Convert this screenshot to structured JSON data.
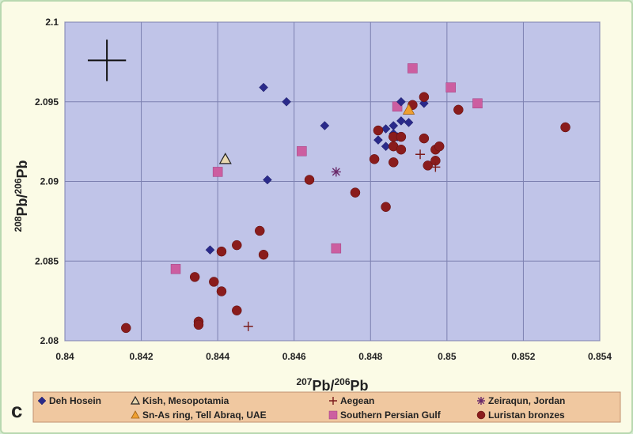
{
  "chart_data": {
    "type": "scatter",
    "panel_label": "c",
    "xlabel": {
      "pre_sup": "207",
      "main": "Pb/",
      "post_sup": "206",
      "end": "Pb"
    },
    "ylabel": {
      "pre_sup": "208",
      "main": "Pb/",
      "post_sup": "206",
      "end": "Pb"
    },
    "xlim": [
      0.84,
      0.854
    ],
    "ylim": [
      2.08,
      2.1
    ],
    "x_ticks": [
      0.84,
      0.842,
      0.844,
      0.846,
      0.848,
      0.85,
      0.852,
      0.854
    ],
    "x_tick_labels": [
      "0.84",
      "0.842",
      "0.844",
      "0.846",
      "0.848",
      "0.85",
      "0.852",
      "0.854"
    ],
    "y_ticks": [
      2.08,
      2.085,
      2.09,
      2.095,
      2.1
    ],
    "y_tick_labels": [
      "2.08",
      "2.085",
      "2.09",
      "2.095",
      "2.1"
    ],
    "grid": true,
    "legend_position": "bottom",
    "error_cross": {
      "x": 0.8411,
      "y": 2.0976,
      "x_err": 0.00025,
      "y_err": 0.0013
    },
    "series": [
      {
        "name": "Deh Hosein",
        "marker": "diamond",
        "color": "#2a2a8a",
        "points": [
          [
            0.8452,
            2.0959
          ],
          [
            0.8458,
            2.095
          ],
          [
            0.8468,
            2.0935
          ],
          [
            0.8453,
            2.0901
          ],
          [
            0.8438,
            2.0857
          ],
          [
            0.8488,
            2.095
          ],
          [
            0.8494,
            2.0949
          ],
          [
            0.8482,
            2.0926
          ],
          [
            0.8484,
            2.0933
          ],
          [
            0.8486,
            2.0935
          ],
          [
            0.8488,
            2.0938
          ],
          [
            0.849,
            2.0937
          ],
          [
            0.8484,
            2.0922
          ],
          [
            0.8486,
            2.093
          ],
          [
            0.8487,
            2.0928
          ]
        ]
      },
      {
        "name": "Kish, Mesopotamia",
        "marker": "triangle-open",
        "color": "#e8d8b0",
        "points": [
          [
            0.8442,
            2.0914
          ]
        ]
      },
      {
        "name": "Sn-As ring, Tell Abraq, UAE",
        "marker": "triangle",
        "color": "#f0a030",
        "points": [
          [
            0.849,
            2.0945
          ]
        ]
      },
      {
        "name": "Aegean",
        "marker": "plus",
        "color": "#7a1a1a",
        "points": [
          [
            0.8448,
            2.0809
          ],
          [
            0.8493,
            2.0917
          ],
          [
            0.8497,
            2.0909
          ]
        ]
      },
      {
        "name": "Southern Persian Gulf",
        "marker": "square",
        "color": "#cc5ea0",
        "points": [
          [
            0.8491,
            2.0971
          ],
          [
            0.8501,
            2.0959
          ],
          [
            0.8508,
            2.0949
          ],
          [
            0.8487,
            2.0947
          ],
          [
            0.8462,
            2.0919
          ],
          [
            0.844,
            2.0906
          ],
          [
            0.8471,
            2.0858
          ],
          [
            0.8429,
            2.0845
          ]
        ]
      },
      {
        "name": "Zeiraqun, Jordan",
        "marker": "asterisk",
        "color": "#6a2a6a",
        "points": [
          [
            0.8471,
            2.0906
          ]
        ]
      },
      {
        "name": "Luristan bronzes",
        "marker": "circle",
        "color": "#8a1c1c",
        "points": [
          [
            0.8494,
            2.0953
          ],
          [
            0.8491,
            2.0948
          ],
          [
            0.8503,
            2.0945
          ],
          [
            0.8482,
            2.0932
          ],
          [
            0.8531,
            2.0934
          ],
          [
            0.8486,
            2.0928
          ],
          [
            0.8488,
            2.0928
          ],
          [
            0.8494,
            2.0927
          ],
          [
            0.8486,
            2.0922
          ],
          [
            0.8488,
            2.092
          ],
          [
            0.8497,
            2.092
          ],
          [
            0.8498,
            2.0922
          ],
          [
            0.8481,
            2.0914
          ],
          [
            0.8486,
            2.0912
          ],
          [
            0.8495,
            2.091
          ],
          [
            0.8497,
            2.0913
          ],
          [
            0.8464,
            2.0901
          ],
          [
            0.8476,
            2.0893
          ],
          [
            0.8484,
            2.0884
          ],
          [
            0.8451,
            2.0869
          ],
          [
            0.8441,
            2.0856
          ],
          [
            0.8445,
            2.086
          ],
          [
            0.8452,
            2.0854
          ],
          [
            0.8434,
            2.084
          ],
          [
            0.8439,
            2.0837
          ],
          [
            0.8441,
            2.0831
          ],
          [
            0.8445,
            2.0819
          ],
          [
            0.8435,
            2.0812
          ],
          [
            0.8435,
            2.081
          ],
          [
            0.8416,
            2.0808
          ]
        ]
      }
    ]
  },
  "legend": {
    "rows": [
      [
        "Deh Hosein",
        "Kish, Mesopotamia",
        "Aegean",
        "Zeiraqun, Jordan"
      ],
      [
        "",
        "Sn-As ring, Tell Abraq, UAE",
        "Southern Persian Gulf",
        "Luristan bronzes"
      ]
    ]
  },
  "colors": {
    "plot_bg": "#c0c4e8",
    "grid": "#7c80b0",
    "legend_bg": "#f0c8a0",
    "page_bg": "#fbfbe6"
  }
}
